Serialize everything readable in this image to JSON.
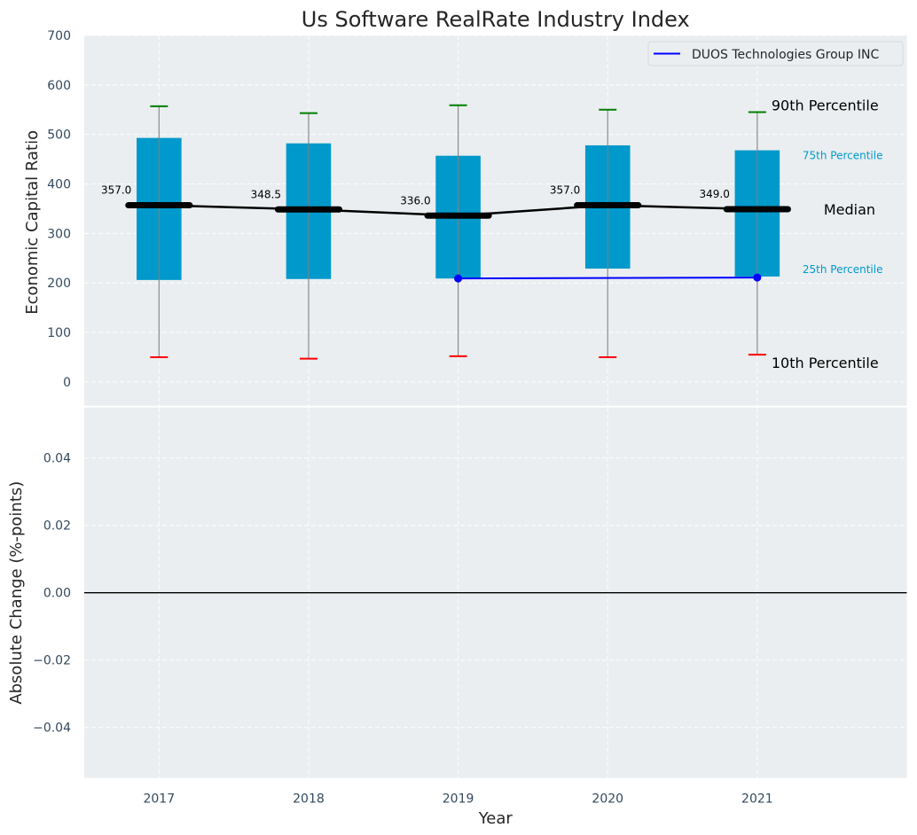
{
  "chart_data": [
    {
      "type": "bar",
      "panel": "top",
      "title": "Us Software RealRate Industry Index",
      "xlabel": "",
      "ylabel": "Economic Capital Ratio",
      "ylim": [
        -48,
        700
      ],
      "xlim": [
        2016.5,
        2022
      ],
      "grid": true,
      "yticks": [
        0,
        100,
        200,
        300,
        400,
        500,
        600,
        700
      ],
      "ytick_labels": [
        "0",
        "100",
        "200",
        "300",
        "400",
        "500",
        "600",
        "700"
      ],
      "categories": [
        2017,
        2018,
        2019,
        2020,
        2021
      ],
      "series": [
        {
          "name": "25th Percentile",
          "values": [
            206,
            208,
            209,
            229,
            213
          ]
        },
        {
          "name": "75th Percentile",
          "values": [
            493,
            482,
            457,
            478,
            468
          ]
        },
        {
          "name": "Median",
          "values": [
            357.0,
            348.5,
            336.0,
            357.0,
            349.0
          ]
        },
        {
          "name": "10th Percentile",
          "values": [
            50,
            47,
            52,
            50,
            55
          ]
        },
        {
          "name": "90th Percentile",
          "values": [
            557,
            543,
            559,
            550,
            545
          ]
        },
        {
          "name": "DUOS Technologies Group INC",
          "x": [
            2019,
            2021
          ],
          "values": [
            209,
            211
          ]
        }
      ],
      "median_labels": [
        "357.0",
        "348.5",
        "336.0",
        "357.0",
        "349.0"
      ],
      "legend": {
        "entries": [
          "DUOS Technologies Group INC"
        ],
        "placement": "top-right"
      },
      "annotations": {
        "p90": "90th Percentile",
        "p75": "75th Percentile",
        "median": "Median",
        "p25": "25th Percentile",
        "p10": "10th Percentile"
      },
      "colors": {
        "box": "#0099cc",
        "median": "#000000",
        "whisker": "#808080",
        "p90_cap": "#008000",
        "p10_cap": "#ff0000",
        "company": "#0000ff",
        "percentile_text": "#0099cc",
        "background": "#eaeef0"
      }
    },
    {
      "type": "line",
      "panel": "bottom",
      "xlabel": "Year",
      "ylabel": "Absolute Change (%-points)",
      "ylim": [
        -0.055,
        0.055
      ],
      "xlim": [
        2016.5,
        2022
      ],
      "grid": true,
      "yticks": [
        -0.04,
        -0.02,
        0.0,
        0.02,
        0.04
      ],
      "ytick_labels": [
        "−0.04",
        "−0.02",
        "0.00",
        "0.02",
        "0.04"
      ],
      "xticks": [
        2017,
        2018,
        2019,
        2020,
        2021
      ],
      "xtick_labels": [
        "2017",
        "2018",
        "2019",
        "2020",
        "2021"
      ],
      "series": [],
      "reference_line": 0.0
    }
  ]
}
